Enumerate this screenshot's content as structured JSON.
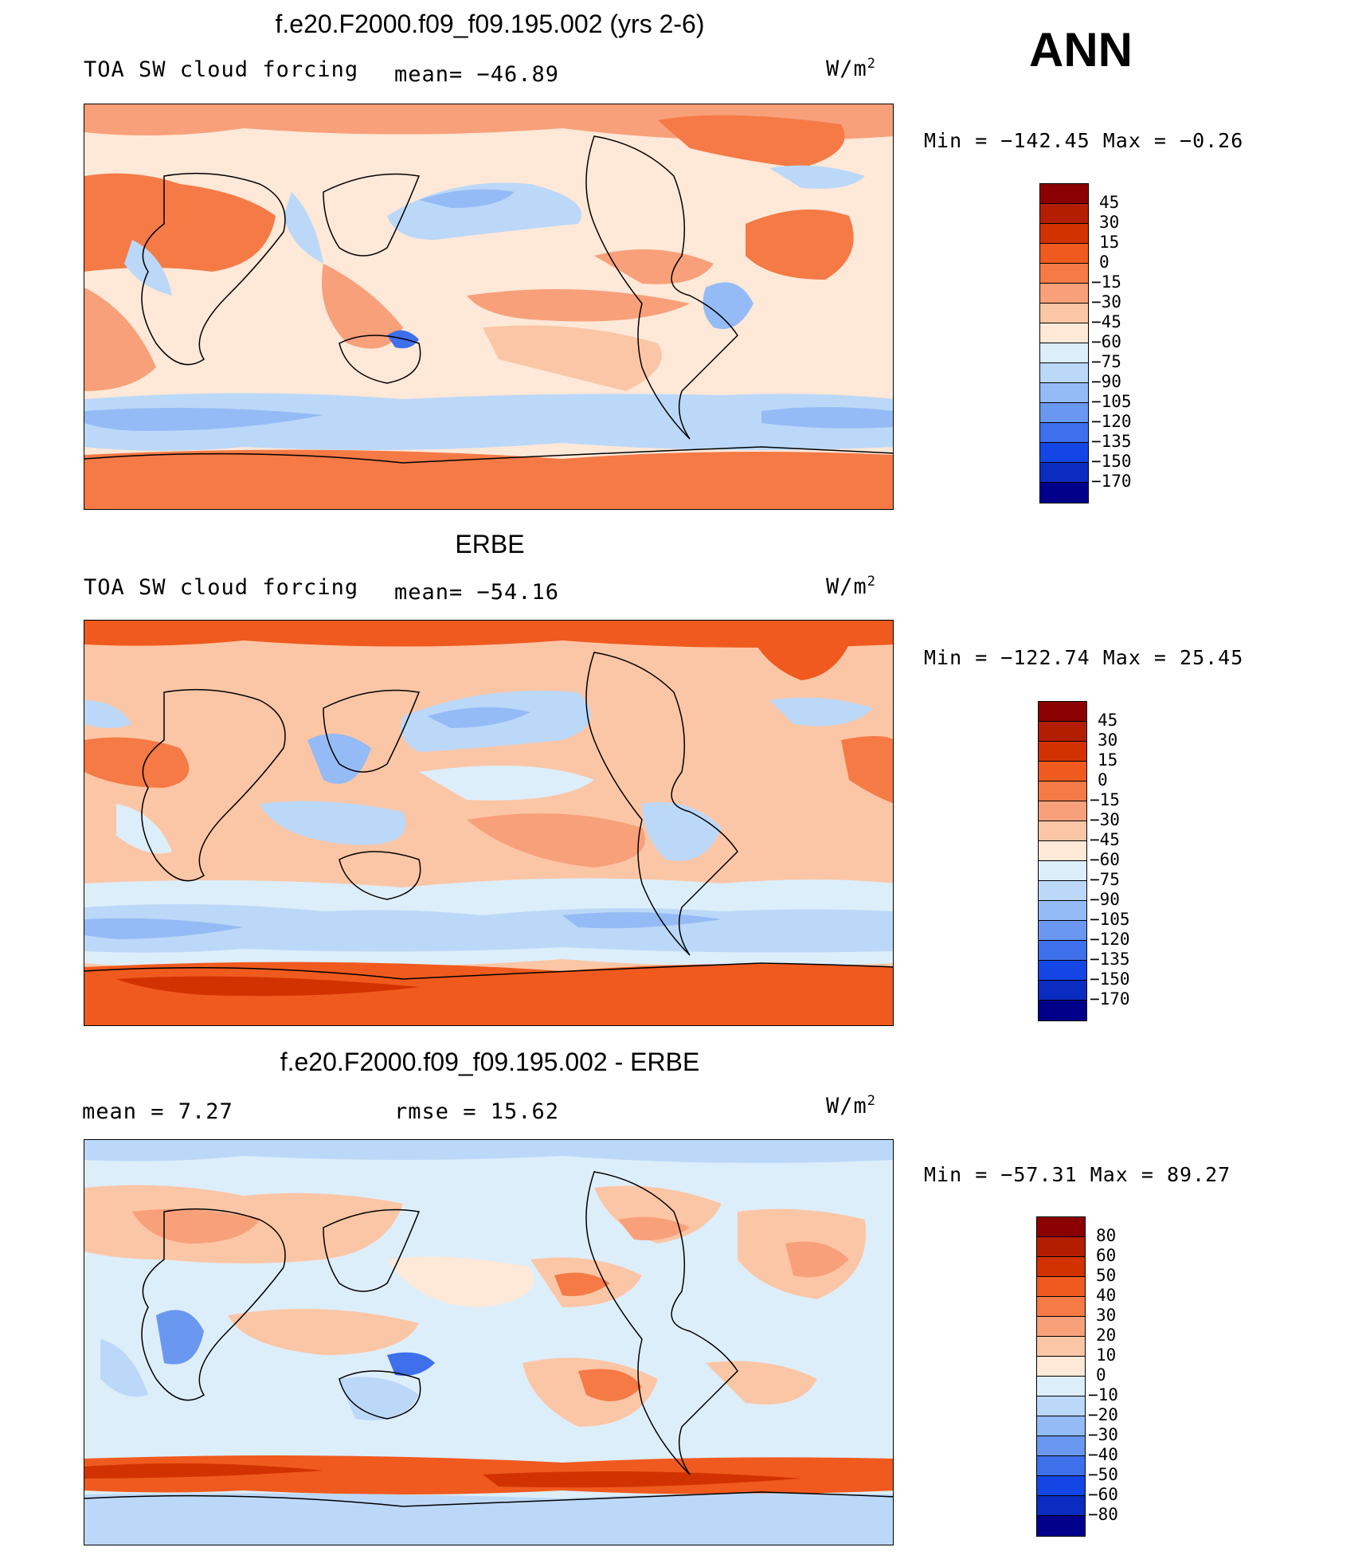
{
  "season": "ANN",
  "units_base": "W/m",
  "units_exp": "2",
  "colors_abs": [
    "#8b0000",
    "#b41e00",
    "#d23200",
    "#f05a1e",
    "#f57a46",
    "#f8a07a",
    "#fbc6a6",
    "#fee8d8",
    "#ddeefb",
    "#bcd8f8",
    "#94bbf5",
    "#6a98f0",
    "#3e70eb",
    "#1446e6",
    "#0a2cc0",
    "#00008b"
  ],
  "colors_diff": [
    "#8b0000",
    "#b41e00",
    "#d23200",
    "#f05a1e",
    "#f57a46",
    "#f8a07a",
    "#fbc6a6",
    "#fee8d8",
    "#ddeefb",
    "#bcd8f8",
    "#94bbf5",
    "#6a98f0",
    "#3e70eb",
    "#1446e6",
    "#0a2cc0",
    "#00008b"
  ],
  "panels": [
    {
      "title": "f.e20.F2000.f09_f09.195.002 (yrs 2-6)",
      "left_label": "TOA SW cloud forcing",
      "mid_label": "mean= −46.89",
      "min_label": "Min  =  −142.45  Max  =   −0.26",
      "ticks": [
        "45",
        "30",
        "15",
        "0",
        "−15",
        "−30",
        "−45",
        "−60",
        "−75",
        "−90",
        "−105",
        "−120",
        "−135",
        "−150",
        "−170"
      ]
    },
    {
      "title": "ERBE",
      "left_label": "TOA SW cloud forcing",
      "mid_label": "mean= −54.16",
      "min_label": "Min  =  −122.74  Max  =   25.45",
      "ticks": [
        "45",
        "30",
        "15",
        "0",
        "−15",
        "−30",
        "−45",
        "−60",
        "−75",
        "−90",
        "−105",
        "−120",
        "−135",
        "−150",
        "−170"
      ]
    },
    {
      "title": "f.e20.F2000.f09_f09.195.002 - ERBE",
      "left_label": "mean  =    7.27",
      "mid_label": "rmse  =    15.62",
      "min_label": "Min  =  −57.31  Max  =   89.27",
      "ticks": [
        "80",
        "60",
        "50",
        "40",
        "30",
        "20",
        "10",
        "0",
        "−10",
        "−20",
        "−30",
        "−40",
        "−50",
        "−60",
        "−80"
      ]
    }
  ]
}
